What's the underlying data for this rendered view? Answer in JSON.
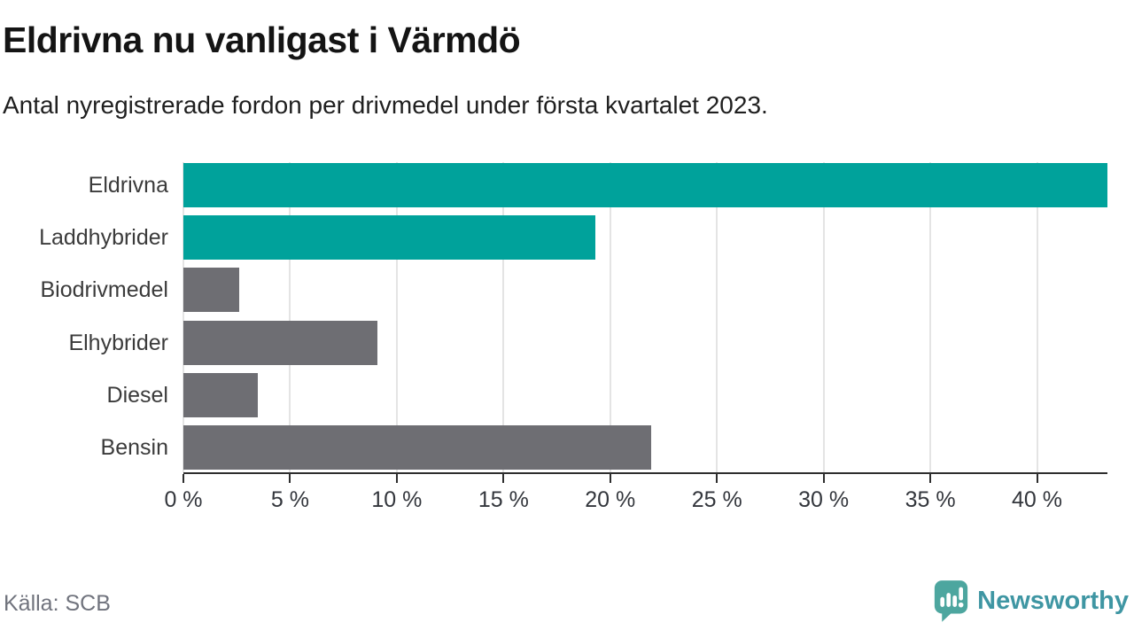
{
  "header": {
    "title": "Eldrivna nu vanligast i Värmdö",
    "subtitle": "Antal nyregistrerade fordon per drivmedel under första kvartalet 2023."
  },
  "footer": {
    "source": "Källa: SCB",
    "brand": "Newsworthy"
  },
  "colors": {
    "accent": "#00A29B",
    "neutral": "#6E6E73",
    "grid": "#E4E4E4",
    "axis": "#2E2E2E",
    "tick_label": "#33363C",
    "category_label": "#3B3B3B",
    "title": "#141414",
    "subtitle": "#1F1F1F",
    "source": "#70737D",
    "brand_icon": "#4DA69F",
    "brand_text": "#3F96A3"
  },
  "chart_data": {
    "type": "bar",
    "orientation": "horizontal",
    "title": "Eldrivna nu vanligast i Värmdö",
    "subtitle": "Antal nyregistrerade fordon per drivmedel under första kvartalet 2023.",
    "categories": [
      "Eldrivna",
      "Laddhybrider",
      "Biodrivmedel",
      "Elhybrider",
      "Diesel",
      "Bensin"
    ],
    "values": [
      43.3,
      19.3,
      2.6,
      9.1,
      3.5,
      21.9
    ],
    "unit": "%",
    "color_keys": [
      "accent",
      "accent",
      "neutral",
      "neutral",
      "neutral",
      "neutral"
    ],
    "xlim": [
      0,
      43.3
    ],
    "x_tick_values": [
      0,
      5,
      10,
      15,
      20,
      25,
      30,
      35,
      40
    ],
    "x_tick_labels": [
      "0 %",
      "5 %",
      "10 %",
      "15 %",
      "20 %",
      "25 %",
      "30 %",
      "35 %",
      "40 %"
    ],
    "grid": true,
    "legend": false,
    "source": "SCB"
  }
}
